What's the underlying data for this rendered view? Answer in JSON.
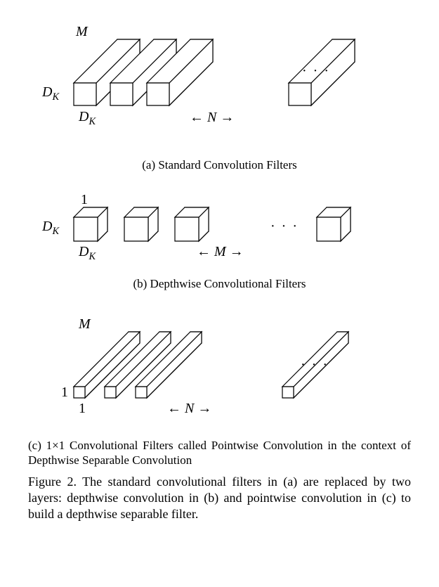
{
  "figure": {
    "number": "Figure 2.",
    "main_caption": "The standard convolutional filters in (a) are replaced by two layers: depthwise convolution in (b) and pointwise convolu­tion in (c) to build a depthwise separable filter."
  },
  "panel_a": {
    "caption": "(a) Standard Convolution Filters",
    "depth_label": "M",
    "height_label_html": "D<span class='sub'>K</span>",
    "width_label_html": "D<span class='sub'>K</span>",
    "count_label": "N",
    "ellipsis": "· · ·",
    "style": {
      "type": "3d-cuboid-array",
      "stroke": "#000000",
      "fill": "#ffffff",
      "stroke_width": 1.2,
      "face_w": 32,
      "face_h": 32,
      "depth_dx": 62,
      "depth_dy": -62,
      "gap": 52,
      "count_before_ellipsis": 3,
      "count_after_ellipsis": 1
    }
  },
  "panel_b": {
    "caption": "(b) Depthwise Convolutional Filters",
    "depth_label": "1",
    "height_label_html": "D<span class='sub'>K</span>",
    "width_label_html": "D<span class='sub'>K</span>",
    "count_label": "M",
    "ellipsis": "· · ·",
    "style": {
      "type": "3d-cuboid-array",
      "stroke": "#000000",
      "fill": "#ffffff",
      "stroke_width": 1.2,
      "face_w": 34,
      "face_h": 34,
      "depth_dx": 14,
      "depth_dy": -14,
      "gap": 72,
      "count_before_ellipsis": 3,
      "count_after_ellipsis": 1
    }
  },
  "panel_c": {
    "caption_html": "(c) 1×1 Convolutional Filters called Pointwise Convolution in the con­text of Depthwise Separable Convolution",
    "depth_label": "M",
    "height_label": "1",
    "width_label": "1",
    "count_label": "N",
    "ellipsis": "· · ·",
    "style": {
      "type": "3d-cuboid-array",
      "stroke": "#000000",
      "fill": "#ffffff",
      "stroke_width": 1.2,
      "face_w": 16,
      "face_h": 16,
      "depth_dx": 78,
      "depth_dy": -78,
      "gap": 44,
      "count_before_ellipsis": 3,
      "count_after_ellipsis": 1
    }
  },
  "arrows": {
    "left": "←",
    "right": "→"
  }
}
